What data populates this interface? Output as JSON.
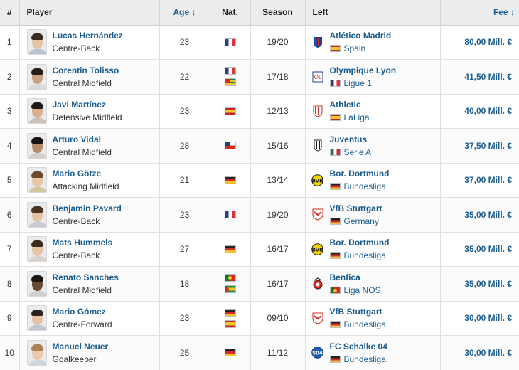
{
  "header": {
    "num": "#",
    "player": "Player",
    "age": "Age",
    "age_sort_icon": "↕",
    "nat": "Nat.",
    "season": "Season",
    "left": "Left",
    "fee": "Fee",
    "fee_sort_icon": "↓"
  },
  "colors": {
    "link": "#1a5d91",
    "header_bg": "#ececec",
    "border": "#e0e0e0"
  },
  "rows": [
    {
      "num": "1",
      "name": "Lucas Hernández",
      "position": "Centre-Back",
      "age": "23",
      "nat_flags": [
        "france-flag"
      ],
      "season": "19/20",
      "club": "Atlético Madrid",
      "club_icon": "atletico-crest-icon",
      "league_flag": "spain-flag",
      "league": "Spain",
      "fee": "80,00 Mill. €"
    },
    {
      "num": "2",
      "name": "Corentin Tolisso",
      "position": "Central Midfield",
      "age": "22",
      "nat_flags": [
        "france-flag",
        "togo-flag"
      ],
      "season": "17/18",
      "club": "Olympique Lyon",
      "club_icon": "lyon-crest-icon",
      "league_flag": "france-flag",
      "league": "Ligue 1",
      "fee": "41,50 Mill. €"
    },
    {
      "num": "3",
      "name": "Javi Martínez",
      "position": "Defensive Midfield",
      "age": "23",
      "nat_flags": [
        "spain-flag"
      ],
      "season": "12/13",
      "club": "Athletic",
      "club_icon": "athletic-crest-icon",
      "league_flag": "spain-flag",
      "league": "LaLiga",
      "fee": "40,00 Mill. €"
    },
    {
      "num": "4",
      "name": "Arturo Vidal",
      "position": "Central Midfield",
      "age": "28",
      "nat_flags": [
        "chile-flag"
      ],
      "season": "15/16",
      "club": "Juventus",
      "club_icon": "juventus-crest-icon",
      "league_flag": "italy-flag",
      "league": "Serie A",
      "fee": "37,50 Mill. €"
    },
    {
      "num": "5",
      "name": "Mario Götze",
      "position": "Attacking Midfield",
      "age": "21",
      "nat_flags": [
        "germany-flag"
      ],
      "season": "13/14",
      "club": "Bor. Dortmund",
      "club_icon": "dortmund-crest-icon",
      "league_flag": "germany-flag",
      "league": "Bundesliga",
      "fee": "37,00 Mill. €"
    },
    {
      "num": "6",
      "name": "Benjamin Pavard",
      "position": "Centre-Back",
      "age": "23",
      "nat_flags": [
        "france-flag"
      ],
      "season": "19/20",
      "club": "VfB Stuttgart",
      "club_icon": "stuttgart-crest-icon",
      "league_flag": "germany-flag",
      "league": "Germany",
      "fee": "35,00 Mill. €"
    },
    {
      "num": "7",
      "name": "Mats Hummels",
      "position": "Centre-Back",
      "age": "27",
      "nat_flags": [
        "germany-flag"
      ],
      "season": "16/17",
      "club": "Bor. Dortmund",
      "club_icon": "dortmund-crest-icon",
      "league_flag": "germany-flag",
      "league": "Bundesliga",
      "fee": "35,00 Mill. €"
    },
    {
      "num": "8",
      "name": "Renato Sanches",
      "position": "Central Midfield",
      "age": "18",
      "nat_flags": [
        "portugal-flag",
        "sao-tome-flag"
      ],
      "season": "16/17",
      "club": "Benfica",
      "club_icon": "benfica-crest-icon",
      "league_flag": "portugal-flag",
      "league": "Liga NOS",
      "fee": "35,00 Mill. €"
    },
    {
      "num": "9",
      "name": "Mario Gómez",
      "position": "Centre-Forward",
      "age": "23",
      "nat_flags": [
        "germany-flag",
        "spain-flag"
      ],
      "season": "09/10",
      "club": "VfB Stuttgart",
      "club_icon": "stuttgart-crest-icon",
      "league_flag": "germany-flag",
      "league": "Bundesliga",
      "fee": "30,00 Mill. €"
    },
    {
      "num": "10",
      "name": "Manuel Neuer",
      "position": "Goalkeeper",
      "age": "25",
      "nat_flags": [
        "germany-flag"
      ],
      "season": "11/12",
      "club": "FC Schalke 04",
      "club_icon": "schalke-crest-icon",
      "league_flag": "germany-flag",
      "league": "Bundesliga",
      "fee": "30,00 Mill. €"
    }
  ]
}
